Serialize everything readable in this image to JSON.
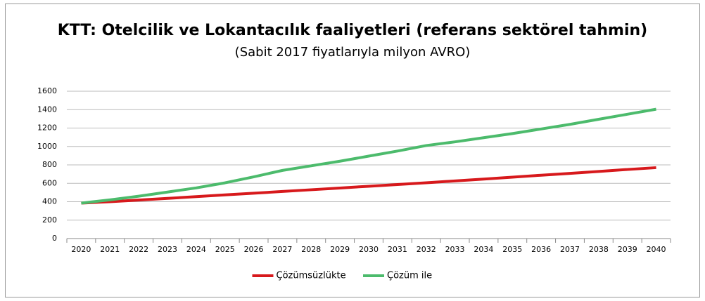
{
  "chart_data": {
    "type": "line",
    "title": "KTT: Otelcilik ve Lokantacılık faaliyetleri (referans sektörel tahmin)",
    "subtitle": "(Sabit 2017 fiyatlarıyla milyon AVRO)",
    "categories": [
      "2020",
      "2021",
      "2022",
      "2023",
      "2024",
      "2025",
      "2026",
      "2027",
      "2028",
      "2029",
      "2030",
      "2031",
      "2032",
      "2033",
      "2034",
      "2035",
      "2036",
      "2037",
      "2038",
      "2039",
      "2040"
    ],
    "series": [
      {
        "name": "Çözümsüzlükte",
        "color": "#d7191c",
        "values": [
          385,
          400,
          418,
          436,
          455,
          474,
          492,
          511,
          530,
          549,
          568,
          587,
          606,
          626,
          646,
          667,
          688,
          708,
          729,
          750,
          770
        ]
      },
      {
        "name": "Çözüm ile",
        "color": "#4cbb6c",
        "values": [
          385,
          420,
          460,
          505,
          550,
          605,
          670,
          740,
          790,
          840,
          895,
          950,
          1010,
          1050,
          1095,
          1140,
          1190,
          1240,
          1295,
          1350,
          1405
        ]
      }
    ],
    "ylim": [
      0,
      1600
    ],
    "yticks": [
      0,
      200,
      400,
      600,
      800,
      1000,
      1200,
      1400,
      1600
    ],
    "grid": true,
    "legend": "bottom"
  }
}
